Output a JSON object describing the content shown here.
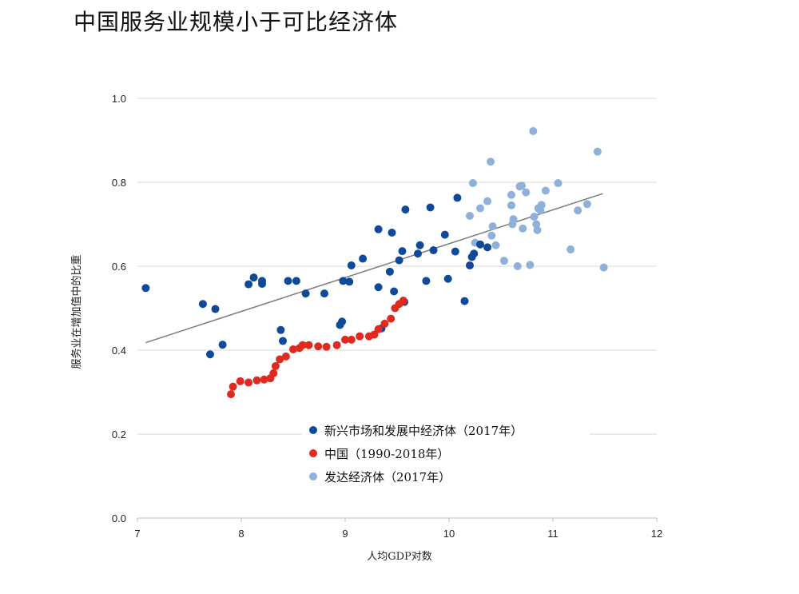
{
  "title": "中国服务业规模小于可比经济体",
  "chart_data": {
    "type": "scatter",
    "title": "中国服务业规模小于可比经济体",
    "xlabel": "人均GDP对数",
    "ylabel": "服务业在增加值中的比重",
    "xlim": [
      7,
      12
    ],
    "ylim": [
      0.0,
      1.0
    ],
    "xticks": [
      "7",
      "8",
      "9",
      "10",
      "11",
      "12"
    ],
    "yticks": [
      "0.0",
      "0.2",
      "0.4",
      "0.6",
      "0.8",
      "1.0"
    ],
    "grid": "horizontal",
    "legend_position": "bottom-center",
    "trendline": {
      "x": [
        7.08,
        11.48
      ],
      "y": [
        0.418,
        0.773
      ],
      "color": "#7a7a7a"
    },
    "series": [
      {
        "name": "新兴市场和发展中经济体（2017年）",
        "color": "#0f4a9a",
        "points": [
          [
            7.08,
            0.548
          ],
          [
            7.63,
            0.51
          ],
          [
            7.75,
            0.498
          ],
          [
            7.7,
            0.39
          ],
          [
            7.82,
            0.413
          ],
          [
            8.07,
            0.557
          ],
          [
            8.12,
            0.573
          ],
          [
            8.2,
            0.558
          ],
          [
            8.2,
            0.565
          ],
          [
            8.38,
            0.448
          ],
          [
            8.4,
            0.422
          ],
          [
            8.45,
            0.565
          ],
          [
            8.53,
            0.565
          ],
          [
            8.62,
            0.535
          ],
          [
            8.8,
            0.535
          ],
          [
            8.95,
            0.46
          ],
          [
            8.97,
            0.468
          ],
          [
            8.98,
            0.565
          ],
          [
            9.04,
            0.563
          ],
          [
            9.06,
            0.602
          ],
          [
            9.17,
            0.618
          ],
          [
            9.32,
            0.688
          ],
          [
            9.32,
            0.55
          ],
          [
            9.35,
            0.452
          ],
          [
            9.43,
            0.587
          ],
          [
            9.45,
            0.68
          ],
          [
            9.47,
            0.54
          ],
          [
            9.52,
            0.614
          ],
          [
            9.55,
            0.636
          ],
          [
            9.57,
            0.515
          ],
          [
            9.58,
            0.735
          ],
          [
            9.7,
            0.63
          ],
          [
            9.72,
            0.65
          ],
          [
            9.78,
            0.565
          ],
          [
            9.82,
            0.74
          ],
          [
            9.85,
            0.638
          ],
          [
            9.96,
            0.675
          ],
          [
            9.99,
            0.57
          ],
          [
            10.06,
            0.635
          ],
          [
            10.08,
            0.763
          ],
          [
            10.15,
            0.517
          ],
          [
            10.2,
            0.602
          ],
          [
            10.22,
            0.622
          ],
          [
            10.24,
            0.63
          ],
          [
            10.3,
            0.652
          ],
          [
            10.37,
            0.645
          ]
        ]
      },
      {
        "name": "中国（1990-2018年）",
        "color": "#e02a20",
        "points": [
          [
            7.9,
            0.295
          ],
          [
            7.92,
            0.313
          ],
          [
            7.99,
            0.326
          ],
          [
            8.07,
            0.323
          ],
          [
            8.15,
            0.328
          ],
          [
            8.22,
            0.33
          ],
          [
            8.28,
            0.333
          ],
          [
            8.31,
            0.345
          ],
          [
            8.33,
            0.362
          ],
          [
            8.37,
            0.378
          ],
          [
            8.43,
            0.385
          ],
          [
            8.5,
            0.402
          ],
          [
            8.56,
            0.405
          ],
          [
            8.59,
            0.412
          ],
          [
            8.65,
            0.412
          ],
          [
            8.74,
            0.409
          ],
          [
            8.82,
            0.408
          ],
          [
            8.92,
            0.412
          ],
          [
            9.0,
            0.425
          ],
          [
            9.06,
            0.425
          ],
          [
            9.14,
            0.433
          ],
          [
            9.23,
            0.433
          ],
          [
            9.28,
            0.437
          ],
          [
            9.32,
            0.45
          ],
          [
            9.38,
            0.463
          ],
          [
            9.44,
            0.475
          ],
          [
            9.48,
            0.5
          ],
          [
            9.52,
            0.51
          ],
          [
            9.56,
            0.518
          ]
        ]
      },
      {
        "name": "发达经济体（2017年）",
        "color": "#8fb0d8",
        "points": [
          [
            10.2,
            0.72
          ],
          [
            10.23,
            0.798
          ],
          [
            10.25,
            0.656
          ],
          [
            10.3,
            0.738
          ],
          [
            10.37,
            0.755
          ],
          [
            10.4,
            0.849
          ],
          [
            10.41,
            0.673
          ],
          [
            10.42,
            0.695
          ],
          [
            10.45,
            0.65
          ],
          [
            10.53,
            0.613
          ],
          [
            10.6,
            0.77
          ],
          [
            10.6,
            0.745
          ],
          [
            10.61,
            0.7
          ],
          [
            10.62,
            0.712
          ],
          [
            10.66,
            0.6
          ],
          [
            10.68,
            0.79
          ],
          [
            10.7,
            0.792
          ],
          [
            10.71,
            0.69
          ],
          [
            10.74,
            0.776
          ],
          [
            10.78,
            0.603
          ],
          [
            10.81,
            0.922
          ],
          [
            10.82,
            0.718
          ],
          [
            10.84,
            0.7
          ],
          [
            10.85,
            0.686
          ],
          [
            10.86,
            0.738
          ],
          [
            10.88,
            0.733
          ],
          [
            10.89,
            0.746
          ],
          [
            10.93,
            0.78
          ],
          [
            11.05,
            0.798
          ],
          [
            11.17,
            0.64
          ],
          [
            11.24,
            0.733
          ],
          [
            11.33,
            0.748
          ],
          [
            11.43,
            0.873
          ],
          [
            11.49,
            0.597
          ]
        ]
      }
    ]
  }
}
